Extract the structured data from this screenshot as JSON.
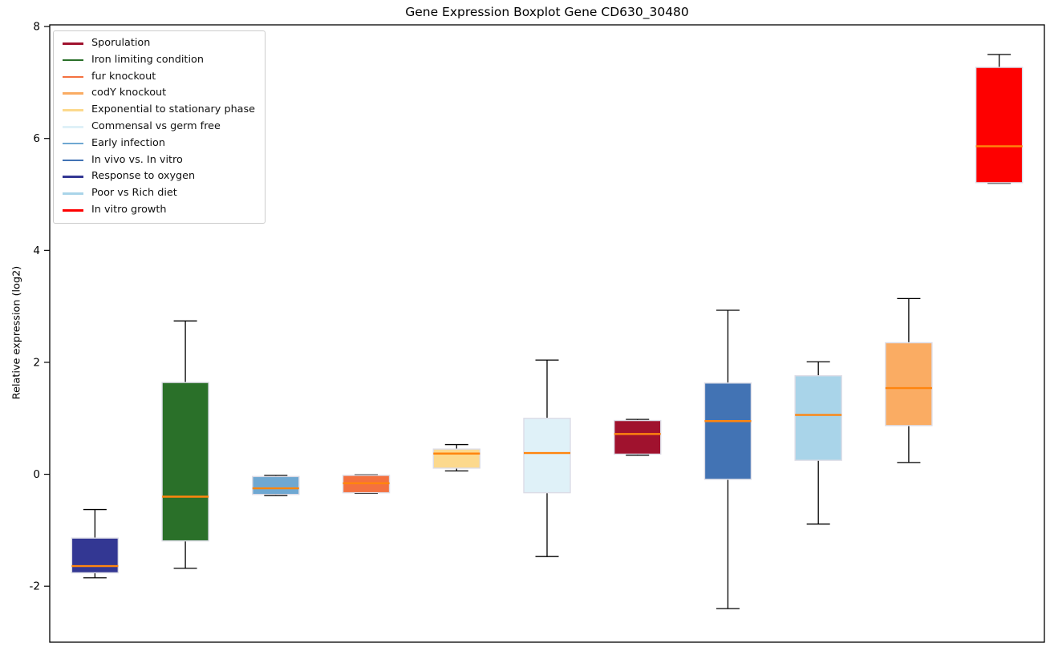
{
  "chart_data": {
    "type": "boxplot",
    "title": "Gene Expression Boxplot Gene CD630_30480",
    "ylabel": "Relative expression (log2)",
    "xlabel": "",
    "ylim": [
      -3.0,
      8.03
    ],
    "yticks": [
      -2,
      0,
      2,
      4,
      6,
      8
    ],
    "x_tick_labels": [],
    "grid": false,
    "legend_position": "upper-left",
    "frame_color": "#000000",
    "whisker_color": "#000000",
    "median_color": "#FF850E",
    "box_edge_color": "#DCDCE6",
    "legend": [
      {
        "label": "Sporulation",
        "color": "#A0122E"
      },
      {
        "label": "Iron limiting condition",
        "color": "#2A7029"
      },
      {
        "label": "fur knockout",
        "color": "#F4713F"
      },
      {
        "label": "codY knockout",
        "color": "#FAAC63"
      },
      {
        "label": "Exponential to stationary phase",
        "color": "#FCD98D"
      },
      {
        "label": "Commensal vs germ free",
        "color": "#DFF1F8"
      },
      {
        "label": "Early infection",
        "color": "#6FA8D2"
      },
      {
        "label": "In vivo vs. In vitro",
        "color": "#4273B4"
      },
      {
        "label": "Response to oxygen",
        "color": "#333793"
      },
      {
        "label": "Poor vs Rich diet",
        "color": "#A9D4E9"
      },
      {
        "label": "In vitro growth",
        "color": "#FE0000"
      }
    ],
    "series": [
      {
        "name": "Response to oxygen",
        "color": "#333793",
        "whislo": -1.85,
        "q1": -1.76,
        "med": -1.64,
        "q3": -1.14,
        "whishi": -0.63
      },
      {
        "name": "Iron limiting condition",
        "color": "#2A7029",
        "whislo": -1.68,
        "q1": -1.19,
        "med": -0.4,
        "q3": 1.64,
        "whishi": 2.74
      },
      {
        "name": "Early infection",
        "color": "#6FA8D2",
        "whislo": -0.38,
        "q1": -0.36,
        "med": -0.25,
        "q3": -0.04,
        "whishi": -0.02
      },
      {
        "name": "fur knockout",
        "color": "#F4713F",
        "whislo": -0.34,
        "q1": -0.33,
        "med": -0.16,
        "q3": -0.02,
        "whishi": -0.01
      },
      {
        "name": "Exponential to stationary phase",
        "color": "#FCD98D",
        "whislo": 0.06,
        "q1": 0.11,
        "med": 0.37,
        "q3": 0.45,
        "whishi": 0.53
      },
      {
        "name": "Commensal vs germ free",
        "color": "#DFF1F8",
        "whislo": -1.47,
        "q1": -0.33,
        "med": 0.38,
        "q3": 1.0,
        "whishi": 2.04
      },
      {
        "name": "Sporulation",
        "color": "#A0122E",
        "whislo": 0.34,
        "q1": 0.36,
        "med": 0.72,
        "q3": 0.96,
        "whishi": 0.98
      },
      {
        "name": "In vivo vs. In vitro",
        "color": "#4273B4",
        "whislo": -2.4,
        "q1": -0.09,
        "med": 0.95,
        "q3": 1.63,
        "whishi": 2.93
      },
      {
        "name": "Poor vs Rich diet",
        "color": "#A9D4E9",
        "whislo": -0.89,
        "q1": 0.25,
        "med": 1.06,
        "q3": 1.76,
        "whishi": 2.01
      },
      {
        "name": "codY knockout",
        "color": "#FAAC63",
        "whislo": 0.21,
        "q1": 0.87,
        "med": 1.54,
        "q3": 2.35,
        "whishi": 3.14
      },
      {
        "name": "In vitro growth",
        "color": "#FE0000",
        "whislo": 5.2,
        "q1": 5.21,
        "med": 5.86,
        "q3": 7.27,
        "whishi": 7.5
      }
    ]
  }
}
